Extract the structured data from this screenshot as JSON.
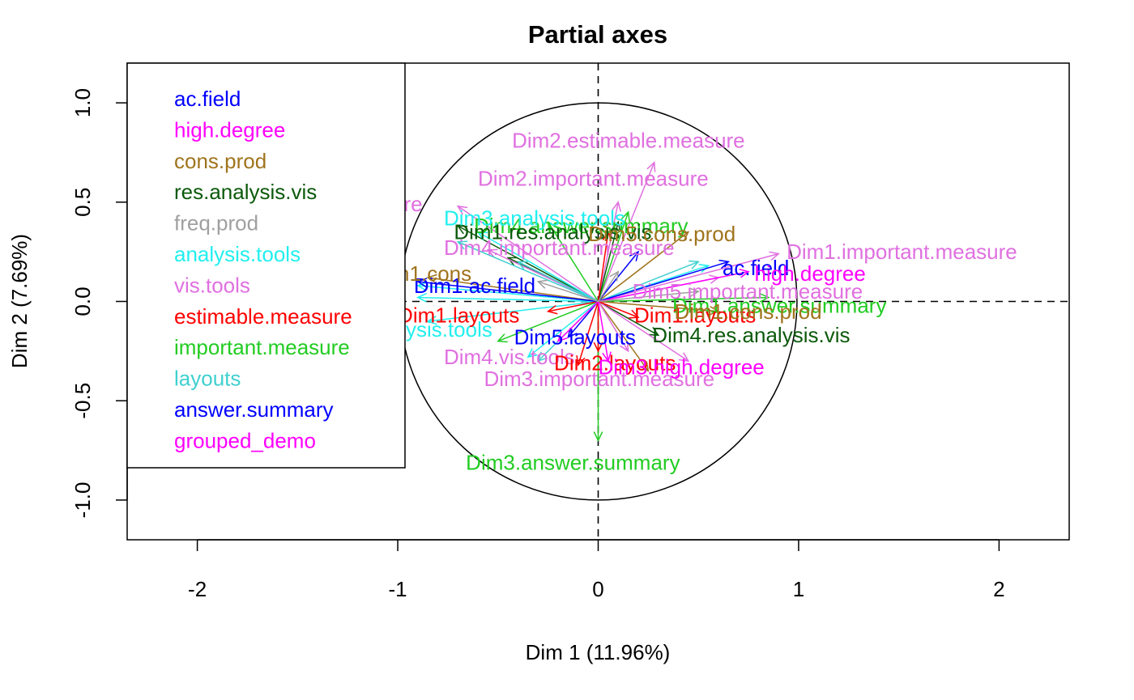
{
  "chart_data": {
    "type": "scatter",
    "title": "Partial axes",
    "xlabel": "Dim 1 (11.96%)",
    "ylabel": "Dim 2 (7.69%)",
    "xlim": [
      -2.35,
      2.35
    ],
    "ylim": [
      -1.2,
      1.2
    ],
    "xticks": [
      -2,
      -1,
      0,
      1,
      2
    ],
    "yticks": [
      -1.0,
      -0.5,
      0.0,
      0.5,
      1.0
    ],
    "xtick_labels": [
      "-2",
      "-1",
      "0",
      "1",
      "2"
    ],
    "ytick_labels": [
      "-1.0",
      "-0.5",
      "0.0",
      "0.5",
      "1.0"
    ],
    "unit_circle": true,
    "reference_lines": "dashed lines at x = 0 and y = 0",
    "legend_position": "top-left",
    "legend": [
      {
        "name": "ac.field",
        "color": "#0000FF"
      },
      {
        "name": "high.degree",
        "color": "#FF00FF"
      },
      {
        "name": "cons.prod",
        "color": "#A0741D"
      },
      {
        "name": "res.analysis.vis",
        "color": "#0B5A0B"
      },
      {
        "name": "freq.prod",
        "color": "#A0A0A0"
      },
      {
        "name": "analysis.tools",
        "color": "#22EFEF"
      },
      {
        "name": "vis.tools",
        "color": "#E070E0"
      },
      {
        "name": "estimable.measure",
        "color": "#FF0000"
      },
      {
        "name": "important.measure",
        "color": "#22CC22"
      },
      {
        "name": "layouts",
        "color": "#40D0D0"
      },
      {
        "name": "answer.summary",
        "color": "#0000FF"
      },
      {
        "name": "grouped_demo",
        "color": "#FF00FF"
      }
    ],
    "annotations": [
      {
        "text": "Dim2.estimable.measure",
        "x": -0.43,
        "y": 0.81,
        "color": "#E070E0"
      },
      {
        "text": "Dim2.important.measure",
        "x": -0.6,
        "y": 0.62,
        "color": "#E070E0"
      },
      {
        "text": "Dim1.important.measure",
        "x": 0.94,
        "y": 0.25,
        "color": "#E070E0"
      },
      {
        "text": "Dim3.answer.summary",
        "x": -0.66,
        "y": -0.81,
        "color": "#22CC22"
      },
      {
        "text": "Dim4.res.analysis.vis",
        "x": 0.27,
        "y": -0.17,
        "color": "#0B5A0B"
      },
      {
        "text": "Dim1.answer.summary",
        "x": 0.37,
        "y": -0.02,
        "color": "#22CC22"
      },
      {
        "text": "Dim3.important.measure",
        "x": -0.57,
        "y": -0.39,
        "color": "#E070E0"
      },
      {
        "text": "Dim5.layouts",
        "x": -0.42,
        "y": -0.18,
        "color": "#0000FF"
      },
      {
        "text": "Dim1.layouts",
        "x": 0.18,
        "y": -0.07,
        "color": "#FF0000"
      },
      {
        "text": "ac.field",
        "x": 0.62,
        "y": 0.17,
        "color": "#0000FF"
      },
      {
        "text": "high.degree",
        "x": 0.78,
        "y": 0.14,
        "color": "#FF00FF"
      },
      {
        "text": "Dim1.ac.field",
        "x": -0.92,
        "y": 0.08,
        "color": "#0000FF"
      },
      {
        "text": "Dim4.answer.summary",
        "x": -0.62,
        "y": 0.38,
        "color": "#22CC22"
      },
      {
        "text": "Dim1.res.analysis.vis",
        "x": -0.72,
        "y": 0.35,
        "color": "#0B5A0B"
      },
      {
        "text": "re",
        "x": -0.97,
        "y": 0.49,
        "color": "#E070E0"
      },
      {
        "text": "ysis.tools",
        "x": -0.96,
        "y": -0.14,
        "color": "#22EFEF"
      },
      {
        "text": "n1.cons",
        "x": -1.0,
        "y": 0.14,
        "color": "#A0741D"
      },
      {
        "text": "Dim3.analysis.tools",
        "x": -0.77,
        "y": 0.42,
        "color": "#22EFEF"
      },
      {
        "text": "Dim4.important.measure",
        "x": -0.77,
        "y": 0.27,
        "color": "#E070E0"
      },
      {
        "text": "Dim4.vis.tools",
        "x": -0.77,
        "y": -0.28,
        "color": "#E070E0"
      },
      {
        "text": "Dim5.cons.prod",
        "x": -0.05,
        "y": 0.34,
        "color": "#A0741D"
      },
      {
        "text": "Dim5.important.measure",
        "x": 0.17,
        "y": 0.05,
        "color": "#E070E0"
      },
      {
        "text": "Dim1.layouts",
        "x": -1.0,
        "y": -0.07,
        "color": "#FF0000"
      },
      {
        "text": "Dim2.layouts",
        "x": -0.22,
        "y": -0.31,
        "color": "#FF0000"
      },
      {
        "text": "Dim1.cons.prod",
        "x": 0.38,
        "y": -0.05,
        "color": "#A0741D"
      },
      {
        "text": "Dim3.high.degree",
        "x": 0.0,
        "y": -0.33,
        "color": "#FF00FF"
      }
    ],
    "arrows": [
      {
        "x": 0.28,
        "y": 0.7,
        "color": "#E070E0"
      },
      {
        "x": 0.1,
        "y": 0.5,
        "color": "#E070E0"
      },
      {
        "x": 0.9,
        "y": 0.24,
        "color": "#E070E0"
      },
      {
        "x": -0.7,
        "y": 0.48,
        "color": "#E070E0"
      },
      {
        "x": -0.25,
        "y": 0.4,
        "color": "#22CC22"
      },
      {
        "x": 0.0,
        "y": -0.7,
        "color": "#22CC22"
      },
      {
        "x": 0.15,
        "y": 0.45,
        "color": "#22CC22"
      },
      {
        "x": 0.85,
        "y": 0.02,
        "color": "#22CC22"
      },
      {
        "x": -0.5,
        "y": -0.2,
        "color": "#22CC22"
      },
      {
        "x": 0.45,
        "y": 0.35,
        "color": "#A0741D"
      },
      {
        "x": -0.85,
        "y": 0.12,
        "color": "#A0741D"
      },
      {
        "x": 0.6,
        "y": -0.05,
        "color": "#A0741D"
      },
      {
        "x": 0.25,
        "y": -0.35,
        "color": "#A0741D"
      },
      {
        "x": -0.7,
        "y": 0.38,
        "color": "#0B5A0B"
      },
      {
        "x": 0.3,
        "y": -0.17,
        "color": "#0B5A0B"
      },
      {
        "x": -0.45,
        "y": 0.22,
        "color": "#0B5A0B"
      },
      {
        "x": 0.1,
        "y": 0.4,
        "color": "#0B5A0B"
      },
      {
        "x": -0.9,
        "y": 0.02,
        "color": "#22EFEF"
      },
      {
        "x": -0.85,
        "y": -0.1,
        "color": "#22EFEF"
      },
      {
        "x": -0.6,
        "y": 0.35,
        "color": "#22EFEF"
      },
      {
        "x": 0.55,
        "y": 0.18,
        "color": "#22EFEF"
      },
      {
        "x": -0.9,
        "y": 0.08,
        "color": "#22EFEF"
      },
      {
        "x": -0.35,
        "y": -0.28,
        "color": "#22EFEF"
      },
      {
        "x": 0.6,
        "y": 0.12,
        "color": "#E070E0"
      },
      {
        "x": -0.55,
        "y": 0.26,
        "color": "#E070E0"
      },
      {
        "x": 0.45,
        "y": -0.3,
        "color": "#E070E0"
      },
      {
        "x": 0.15,
        "y": -0.25,
        "color": "#E070E0"
      },
      {
        "x": 0.2,
        "y": -0.08,
        "color": "#FF0000"
      },
      {
        "x": -0.25,
        "y": -0.05,
        "color": "#FF0000"
      },
      {
        "x": 0.05,
        "y": 0.35,
        "color": "#FF0000"
      },
      {
        "x": -0.1,
        "y": -0.32,
        "color": "#FF0000"
      },
      {
        "x": 0.0,
        "y": -0.25,
        "color": "#FF0000"
      },
      {
        "x": -0.7,
        "y": 0.3,
        "color": "#40D0D0"
      },
      {
        "x": -0.3,
        "y": -0.3,
        "color": "#40D0D0"
      },
      {
        "x": 0.5,
        "y": 0.2,
        "color": "#40D0D0"
      },
      {
        "x": -0.4,
        "y": 0.2,
        "color": "#40D0D0"
      },
      {
        "x": 0.65,
        "y": 0.2,
        "color": "#0000FF"
      },
      {
        "x": -0.9,
        "y": 0.1,
        "color": "#0000FF"
      },
      {
        "x": -0.15,
        "y": -0.18,
        "color": "#0000FF"
      },
      {
        "x": 0.2,
        "y": 0.25,
        "color": "#0000FF"
      },
      {
        "x": 0.75,
        "y": 0.15,
        "color": "#FF00FF"
      },
      {
        "x": 0.05,
        "y": -0.3,
        "color": "#FF00FF"
      },
      {
        "x": -0.2,
        "y": -0.2,
        "color": "#FF00FF"
      },
      {
        "x": 0.1,
        "y": 0.15,
        "color": "#A0A0A0"
      },
      {
        "x": 0.5,
        "y": 0.05,
        "color": "#A0A0A0"
      },
      {
        "x": -0.3,
        "y": 0.1,
        "color": "#A0A0A0"
      }
    ],
    "grid": false
  }
}
